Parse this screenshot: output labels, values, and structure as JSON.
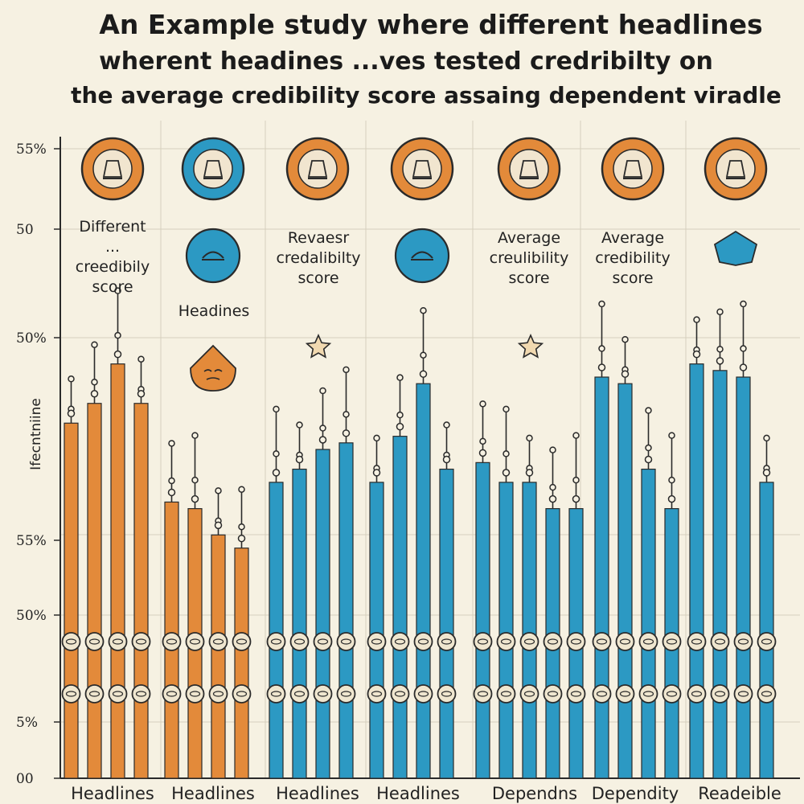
{
  "chart_data": {
    "type": "bar",
    "title": [
      "An Example study where different headlines",
      "wherent headines ...ves tested   credribilty on",
      "the average credibility score assaing dependent viradle"
    ],
    "ylabel": "Ifecntniine",
    "y_tick_labels": [
      "00",
      "5%",
      "50%",
      "55%",
      "50%",
      "50",
      "55%"
    ],
    "ylim": [
      0,
      100
    ],
    "grid": true,
    "colors": {
      "orange": "#e38a3a",
      "blue": "#2c99c3",
      "background": "#f6f1e2",
      "grid": "#d6d0bd",
      "ink": "#2a2a2a"
    },
    "categories": [
      "Headlines",
      "Headlines",
      "Headlines",
      "Headlines",
      "Dependns",
      "Dependity",
      "Readeible"
    ],
    "groups": [
      {
        "category": "Headlines",
        "color": "orange",
        "values": [
          54,
          57,
          63,
          57
        ]
      },
      {
        "category": "Headlines",
        "color": "orange",
        "values": [
          42,
          41,
          37,
          35
        ]
      },
      {
        "category": "Headlines",
        "color": "blue",
        "values": [
          45,
          47,
          50,
          51
        ]
      },
      {
        "category": "Headlines",
        "color": "blue",
        "values": [
          45,
          52,
          60,
          47
        ]
      },
      {
        "category": "Dependns",
        "color": "blue",
        "values": [
          48,
          45,
          45,
          41,
          41
        ]
      },
      {
        "category": "Dependity",
        "color": "blue",
        "values": [
          61,
          60,
          47,
          41
        ]
      },
      {
        "category": "Readeible",
        "color": "blue",
        "values": [
          63,
          62,
          61,
          45
        ]
      }
    ],
    "annotations": [
      {
        "lines": [
          "Different",
          "...",
          "creedibily",
          "score"
        ],
        "group": 0
      },
      {
        "lines": [
          "Headines"
        ],
        "group": 1
      },
      {
        "lines": [
          "Revaesr",
          "credalibilty",
          "score"
        ],
        "group": 2
      },
      {
        "lines": [
          "Average",
          "creulibility",
          "score"
        ],
        "group": 4
      },
      {
        "lines": [
          "Average",
          "credibility",
          "score"
        ],
        "group": 5
      }
    ],
    "icons": [
      {
        "name": "medal-icon",
        "group": 0,
        "color": "orange"
      },
      {
        "name": "trophy-icon",
        "group": 1,
        "color": "blue"
      },
      {
        "name": "trophy-icon",
        "group": 2,
        "color": "orange"
      },
      {
        "name": "medal-icon",
        "group": 3,
        "color": "orange"
      },
      {
        "name": "trophy-icon",
        "group": 4,
        "color": "orange"
      },
      {
        "name": "bottles-icon",
        "group": 5,
        "color": "orange"
      },
      {
        "name": "headphones-icon",
        "group": 6,
        "color": "orange"
      },
      {
        "name": "mask-icon",
        "group": 1,
        "color": "blue",
        "row": 2
      },
      {
        "name": "face-icon",
        "group": 3,
        "color": "blue",
        "row": 2
      },
      {
        "name": "shield-icon",
        "group": 6,
        "color": "blue",
        "row": 2
      },
      {
        "name": "sad-face-icon",
        "group": 1,
        "color": "orange",
        "row": 3
      }
    ]
  }
}
